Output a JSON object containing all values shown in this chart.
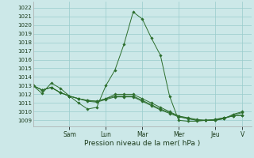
{
  "background_color": "#cce8e8",
  "grid_color": "#99cccc",
  "line_color": "#2d6e2d",
  "marker_color": "#2d6e2d",
  "xlabel_text": "Pression niveau de la mer( hPa )",
  "ylim": [
    1008.3,
    1022.7
  ],
  "yticks": [
    1009,
    1010,
    1011,
    1012,
    1013,
    1014,
    1015,
    1016,
    1017,
    1018,
    1019,
    1020,
    1021,
    1022
  ],
  "day_labels": [
    "Sam",
    "Lun",
    "Mar",
    "Mer",
    "Jeu",
    "V"
  ],
  "day_positions": [
    4,
    8,
    12,
    16,
    20,
    23
  ],
  "xlim": [
    0,
    24
  ],
  "series": [
    [
      1013.0,
      1012.1,
      1013.3,
      1012.7,
      1011.8,
      1011.0,
      1010.3,
      1010.5,
      1013.0,
      1014.8,
      1017.8,
      1021.5,
      1020.7,
      1018.5,
      1016.5,
      1011.8,
      1009.0,
      1008.9,
      1008.9,
      1009.0,
      1009.1,
      1009.3,
      1009.5,
      1009.6
    ],
    [
      1013.0,
      1012.5,
      1012.8,
      1012.2,
      1011.8,
      1011.5,
      1011.3,
      1011.2,
      1011.5,
      1012.0,
      1012.0,
      1012.0,
      1011.5,
      1011.0,
      1010.5,
      1010.0,
      1009.5,
      1009.2,
      1009.0,
      1009.0,
      1009.1,
      1009.3,
      1009.5,
      1009.6
    ],
    [
      1013.0,
      1012.5,
      1012.8,
      1012.2,
      1011.8,
      1011.5,
      1011.3,
      1011.2,
      1011.5,
      1011.8,
      1011.8,
      1011.8,
      1011.3,
      1010.8,
      1010.3,
      1009.9,
      1009.5,
      1009.3,
      1009.1,
      1009.0,
      1009.0,
      1009.2,
      1009.7,
      1010.0
    ],
    [
      1013.0,
      1012.5,
      1012.8,
      1012.2,
      1011.8,
      1011.5,
      1011.2,
      1011.1,
      1011.4,
      1011.7,
      1011.7,
      1011.7,
      1011.2,
      1010.7,
      1010.2,
      1009.8,
      1009.4,
      1009.2,
      1009.0,
      1009.0,
      1009.0,
      1009.2,
      1009.6,
      1009.9
    ]
  ]
}
